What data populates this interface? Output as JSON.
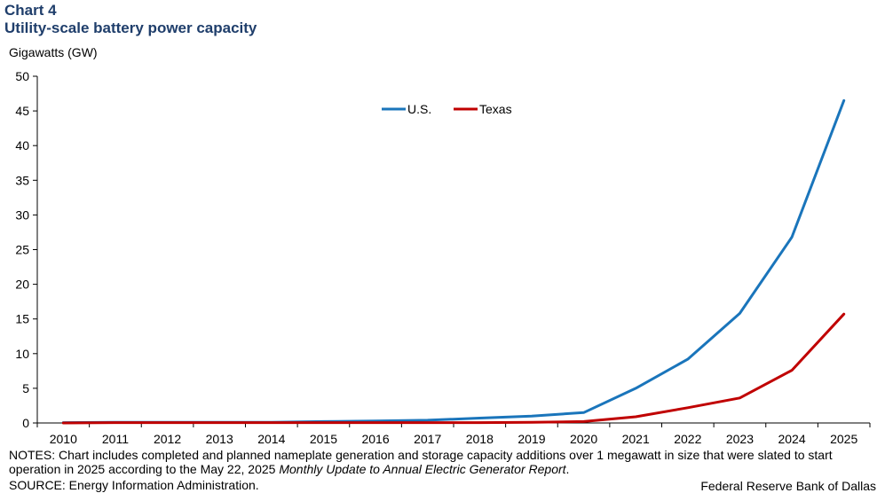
{
  "header": {
    "chart_number": "Chart 4",
    "title": "Utility-scale battery power capacity"
  },
  "chart_data": {
    "type": "line",
    "title": "Utility-scale battery power capacity",
    "ylabel": "Gigawatts (GW)",
    "xlabel": "",
    "ylim": [
      0,
      50
    ],
    "yticks": [
      "0",
      "5",
      "10",
      "15",
      "20",
      "25",
      "30",
      "35",
      "40",
      "45",
      "50"
    ],
    "x": [
      "2010",
      "2011",
      "2012",
      "2013",
      "2014",
      "2015",
      "2016",
      "2017",
      "2018",
      "2019",
      "2020",
      "2021",
      "2022",
      "2023",
      "2024",
      "2025"
    ],
    "series": [
      {
        "name": "U.S.",
        "color": "#1a75bb",
        "values": [
          0.05,
          0.1,
          0.1,
          0.1,
          0.1,
          0.2,
          0.3,
          0.4,
          0.7,
          1.0,
          1.5,
          5.0,
          9.2,
          15.8,
          26.8,
          46.5
        ]
      },
      {
        "name": "Texas",
        "color": "#c00000",
        "values": [
          0.0,
          0.05,
          0.05,
          0.05,
          0.05,
          0.05,
          0.05,
          0.05,
          0.05,
          0.1,
          0.2,
          0.9,
          2.2,
          3.6,
          7.6,
          15.7
        ]
      }
    ],
    "legend_position": "top-center",
    "grid": false
  },
  "notes": {
    "prefix": "NOTES: Chart includes completed and planned nameplate generation and storage capacity additions over 1 megawatt in size that were slated to start operation in 2025 according to the May 22, 2025 ",
    "italic": "Monthly Update to Annual Electric Generator Report",
    "suffix": "."
  },
  "source": "SOURCE: Energy Information Administration.",
  "credit": "Federal Reserve Bank of Dallas"
}
